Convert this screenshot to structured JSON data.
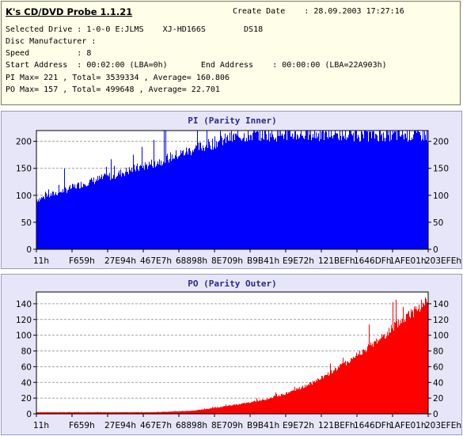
{
  "info": {
    "app_title": "K's CD/DVD Probe 1.1.21",
    "create_date": "Create Date    : 28.09.2003 17:27:16",
    "line_drive": "Selected Drive : 1-0-0 E:JLMS    XJ-HD166S        DS18",
    "line_manufacturer": "Disc Manufacturer :",
    "line_speed": "Speed          : 8",
    "line_address": "Start Address  : 00:02:00 (LBA=0h)       End Address    : 00:00:00 (LBA=22A903h)",
    "line_pi": "PI Max= 221 , Total= 3539334 , Average= 160.806",
    "line_po": "PO Max= 157 , Total= 499648 , Average= 22.701"
  },
  "chart_data": [
    {
      "type": "bar",
      "title": "PI (Parity Inner)",
      "color": "#0000ff",
      "ylim": [
        0,
        220
      ],
      "yticks": [
        0,
        50,
        100,
        150,
        200
      ],
      "xticks": [
        "11h",
        "F659h",
        "27E94h",
        "467E7h",
        "68898h",
        "8E709h",
        "B9B41h",
        "E9E72h",
        "121BEFh",
        "1646DFh",
        "1AFE01h",
        "203EFEh"
      ],
      "grid": true,
      "profile_x": [
        0,
        0.05,
        0.12,
        0.2,
        0.3,
        0.4,
        0.48,
        0.52,
        0.56,
        0.65,
        0.75,
        0.85,
        1.0
      ],
      "profile_y": [
        92,
        104,
        122,
        138,
        160,
        185,
        203,
        210,
        212,
        213,
        212,
        212,
        212
      ]
    },
    {
      "type": "bar",
      "title": "PO (Parity Outer)",
      "color": "#ff0000",
      "ylim": [
        0,
        155
      ],
      "yticks": [
        0,
        20,
        40,
        60,
        80,
        100,
        120,
        140
      ],
      "xticks": [
        "11h",
        "F659h",
        "27E94h",
        "467E7h",
        "68898h",
        "8E709h",
        "B9B41h",
        "E9E72h",
        "121BEFh",
        "1646DFh",
        "1AFE01h",
        "203EFEh"
      ],
      "grid": true,
      "profile_x": [
        0,
        0.3,
        0.4,
        0.45,
        0.5,
        0.55,
        0.6,
        0.65,
        0.7,
        0.75,
        0.8,
        0.85,
        0.9,
        0.95,
        1.0
      ],
      "profile_y": [
        2,
        2,
        4,
        7,
        11,
        15,
        20,
        28,
        38,
        52,
        68,
        85,
        105,
        125,
        145
      ]
    }
  ]
}
